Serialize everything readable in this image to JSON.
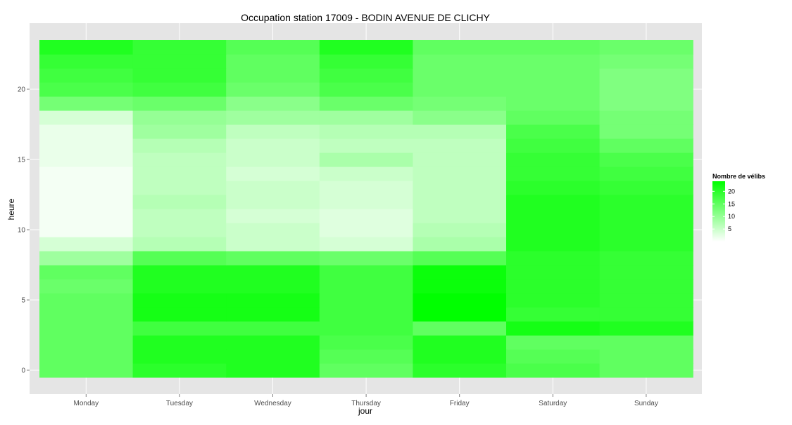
{
  "chart_data": {
    "type": "heatmap",
    "title": "Occupation station 17009 - BODIN AVENUE DE CLICHY",
    "xlabel": "jour",
    "ylabel": "heure",
    "x_categories": [
      "Monday",
      "Tuesday",
      "Wednesday",
      "Thursday",
      "Friday",
      "Saturday",
      "Sunday"
    ],
    "y_range": [
      -0.5,
      23.5
    ],
    "y_ticks": [
      0,
      5,
      10,
      15,
      20
    ],
    "hours": [
      0,
      1,
      2,
      3,
      4,
      5,
      6,
      7,
      8,
      9,
      10,
      11,
      12,
      13,
      14,
      15,
      16,
      17,
      18,
      19,
      20,
      21,
      22,
      23
    ],
    "values": [
      [
        15,
        20,
        21,
        15,
        20,
        17,
        15
      ],
      [
        15,
        21,
        21,
        16,
        21,
        16,
        15
      ],
      [
        15,
        21,
        21,
        17,
        21,
        15,
        15
      ],
      [
        15,
        18,
        18,
        18,
        15,
        22,
        21
      ],
      [
        15,
        22,
        22,
        18,
        24,
        19,
        19
      ],
      [
        15,
        22,
        22,
        18,
        24,
        20,
        19
      ],
      [
        14,
        21,
        21,
        18,
        23,
        20,
        19
      ],
      [
        15,
        21,
        21,
        18,
        23,
        20,
        19
      ],
      [
        9,
        16,
        15,
        14,
        16,
        20,
        19
      ],
      [
        4,
        7,
        5,
        4,
        8,
        21,
        20
      ],
      [
        1,
        6,
        5,
        3,
        7,
        21,
        20
      ],
      [
        1,
        6,
        4,
        3,
        6,
        21,
        20
      ],
      [
        1,
        7,
        5,
        4,
        6,
        21,
        20
      ],
      [
        1,
        6,
        5,
        4,
        6,
        20,
        19
      ],
      [
        1,
        6,
        4,
        5,
        6,
        19,
        18
      ],
      [
        2,
        6,
        5,
        8,
        6,
        19,
        17
      ],
      [
        2,
        7,
        5,
        6,
        6,
        18,
        15
      ],
      [
        2,
        9,
        6,
        7,
        7,
        17,
        13
      ],
      [
        4,
        10,
        9,
        9,
        11,
        15,
        13
      ],
      [
        13,
        14,
        11,
        14,
        13,
        14,
        12
      ],
      [
        17,
        18,
        14,
        17,
        14,
        14,
        12
      ],
      [
        18,
        19,
        15,
        18,
        14,
        14,
        12
      ],
      [
        19,
        19,
        15,
        19,
        14,
        14,
        13
      ],
      [
        21,
        19,
        16,
        21,
        15,
        15,
        14
      ]
    ],
    "legend": {
      "title": "Nombre de vélibs",
      "breaks": [
        5,
        10,
        15,
        20
      ],
      "range": [
        0,
        24
      ],
      "low_color": "#ffffff",
      "high_color": "#00ff00"
    },
    "panel_background": "#e5e5e5",
    "grid": true,
    "legend_position": "right"
  }
}
